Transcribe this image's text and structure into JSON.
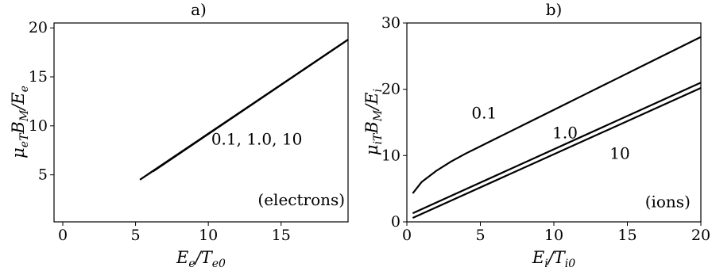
{
  "chart_data": [
    {
      "type": "line",
      "title": "a)",
      "xlabel": "E_e/T_e0",
      "ylabel": "μ_eT B_M/E_e",
      "xlim": [
        -0.6,
        19.6
      ],
      "ylim": [
        0.2,
        20.5
      ],
      "xticks": [
        0,
        5,
        10,
        15
      ],
      "yticks": [
        5,
        10,
        15,
        20
      ],
      "grid": false,
      "series": [
        {
          "name": "0.1",
          "x": [
            5.3,
            19.6
          ],
          "y": [
            4.5,
            18.8
          ]
        },
        {
          "name": "1.0",
          "x": [
            5.8,
            19.6
          ],
          "y": [
            5.0,
            18.8
          ]
        },
        {
          "name": "10",
          "x": [
            6.2,
            19.6
          ],
          "y": [
            5.35,
            18.8
          ]
        }
      ],
      "annotations": [
        {
          "text": "0.1, 1.0, 10",
          "x": 10.2,
          "y": 8.1
        },
        {
          "text": "(electrons)",
          "x": 13.4,
          "y": 1.9
        }
      ]
    },
    {
      "type": "line",
      "title": "b)",
      "xlabel": "E_i/T_i0",
      "ylabel": "μ_iT B_M/E_i",
      "xlim": [
        0,
        20
      ],
      "ylim": [
        0,
        30
      ],
      "xticks": [
        0,
        5,
        10,
        15,
        20
      ],
      "yticks": [
        0,
        10,
        20,
        30
      ],
      "grid": false,
      "series": [
        {
          "name": "0.1",
          "x": [
            0.4,
            1,
            2,
            3,
            4,
            5,
            6,
            8,
            10,
            12,
            14,
            16,
            18,
            20
          ],
          "y": [
            4.3,
            6.0,
            7.7,
            9.1,
            10.3,
            11.4,
            12.5,
            14.7,
            16.9,
            19.1,
            21.3,
            23.5,
            25.7,
            27.9
          ]
        },
        {
          "name": "1.0",
          "x": [
            0.4,
            20
          ],
          "y": [
            1.3,
            21.0
          ]
        },
        {
          "name": "10",
          "x": [
            0.4,
            20
          ],
          "y": [
            0.6,
            20.2
          ]
        }
      ],
      "annotations": [
        {
          "text": "0.1",
          "x": 4.4,
          "y": 15.6
        },
        {
          "text": "1.0",
          "x": 9.9,
          "y": 12.6
        },
        {
          "text": "10",
          "x": 13.8,
          "y": 9.5
        },
        {
          "text": "(ions)",
          "x": 16.2,
          "y": 2.2
        }
      ]
    }
  ],
  "text": {
    "a_title": "a)",
    "b_title": "b)",
    "a_x_tick": [
      "0",
      "5",
      "10",
      "15"
    ],
    "a_y_tick": [
      "5",
      "10",
      "15",
      "20"
    ],
    "b_x_tick": [
      "0",
      "5",
      "10",
      "15",
      "20"
    ],
    "b_y_tick": [
      "0",
      "10",
      "20",
      "30"
    ],
    "a_xlabel_main": "E",
    "a_xlabel_sub1": "e",
    "a_xlabel_mid": "/T",
    "a_xlabel_sub2": "e0",
    "a_ylabel_main": "μ",
    "a_ylabel_sub1": "eT",
    "a_ylabel_mid": "B",
    "a_ylabel_sub2": "M",
    "a_ylabel_tail": "/E",
    "a_ylabel_sub3": "e",
    "b_xlabel_main": "E",
    "b_xlabel_sub1": "i",
    "b_xlabel_mid": "/T",
    "b_xlabel_sub2": "i0",
    "b_ylabel_main": "μ",
    "b_ylabel_sub1": "iT",
    "b_ylabel_mid": "B",
    "b_ylabel_sub2": "M",
    "b_ylabel_tail": "/E",
    "b_ylabel_sub3": "i"
  }
}
